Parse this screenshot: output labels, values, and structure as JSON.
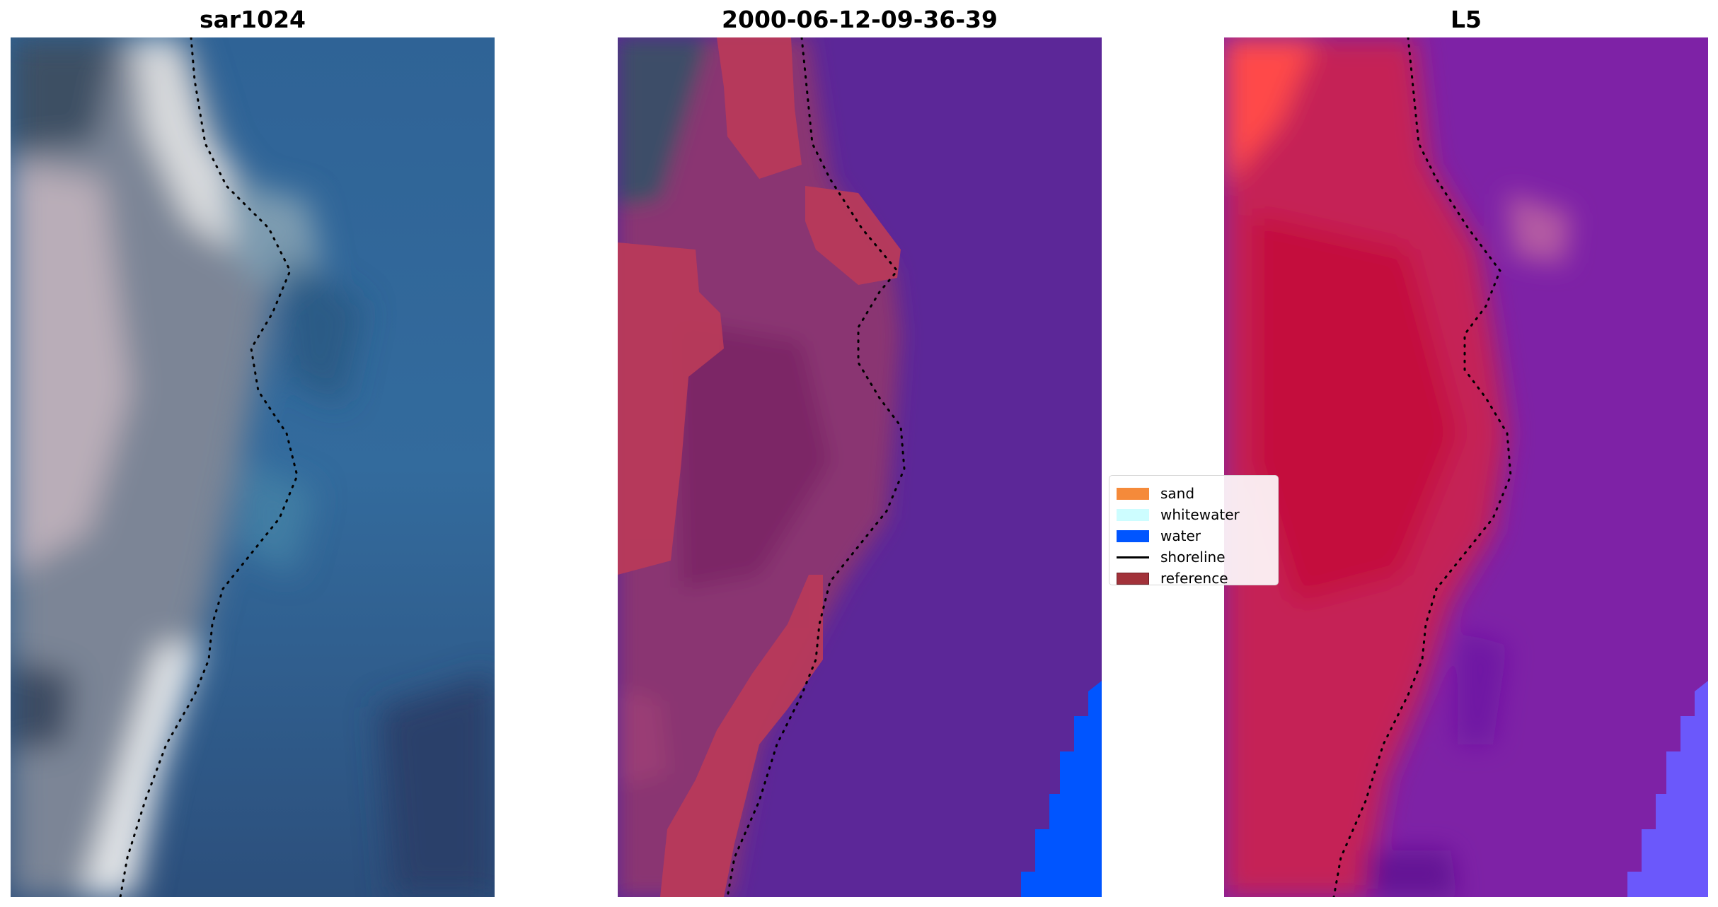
{
  "panels": [
    {
      "title": "sar1024"
    },
    {
      "title": "2000-06-12-09-36-39"
    },
    {
      "title": "L5"
    }
  ],
  "legend": {
    "items": [
      {
        "label": "sand",
        "color": "#f58a3a",
        "kind": "patch"
      },
      {
        "label": "whitewater",
        "color": "#cdfdff",
        "kind": "patch"
      },
      {
        "label": "water",
        "color": "#0055ff",
        "kind": "patch"
      },
      {
        "label": "shoreline",
        "color": "#000000",
        "kind": "line"
      },
      {
        "label": "reference",
        "color": "#a2323a",
        "kind": "patch"
      }
    ]
  }
}
